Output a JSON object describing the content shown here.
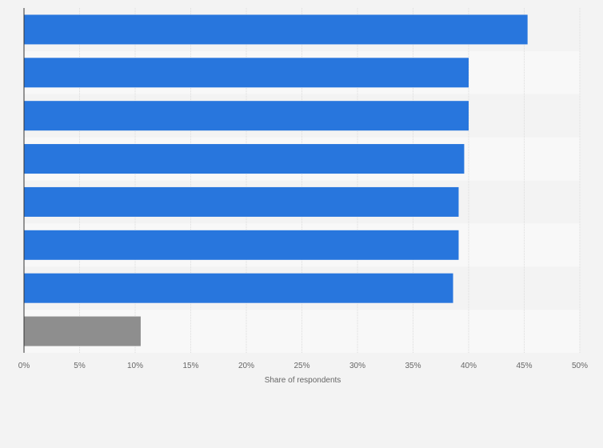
{
  "chart_data": {
    "type": "bar",
    "orientation": "horizontal",
    "title": "",
    "categories": [
      "",
      "",
      "",
      "",
      "",
      "",
      "",
      ""
    ],
    "values": [
      45.3,
      40.0,
      40.0,
      39.6,
      39.1,
      39.1,
      38.6,
      10.5
    ],
    "bar_colors": [
      "#2876dd",
      "#2876dd",
      "#2876dd",
      "#2876dd",
      "#2876dd",
      "#2876dd",
      "#2876dd",
      "#8e8e8e"
    ],
    "xlabel": "Share of respondents",
    "ylabel": "",
    "xlim": [
      0,
      50
    ],
    "xticks": [
      0,
      5,
      10,
      15,
      20,
      25,
      30,
      35,
      40,
      45,
      50
    ],
    "xtick_labels": [
      "0%",
      "5%",
      "10%",
      "15%",
      "20%",
      "25%",
      "30%",
      "35%",
      "40%",
      "45%",
      "50%"
    ],
    "grid": true,
    "legend": "none"
  }
}
